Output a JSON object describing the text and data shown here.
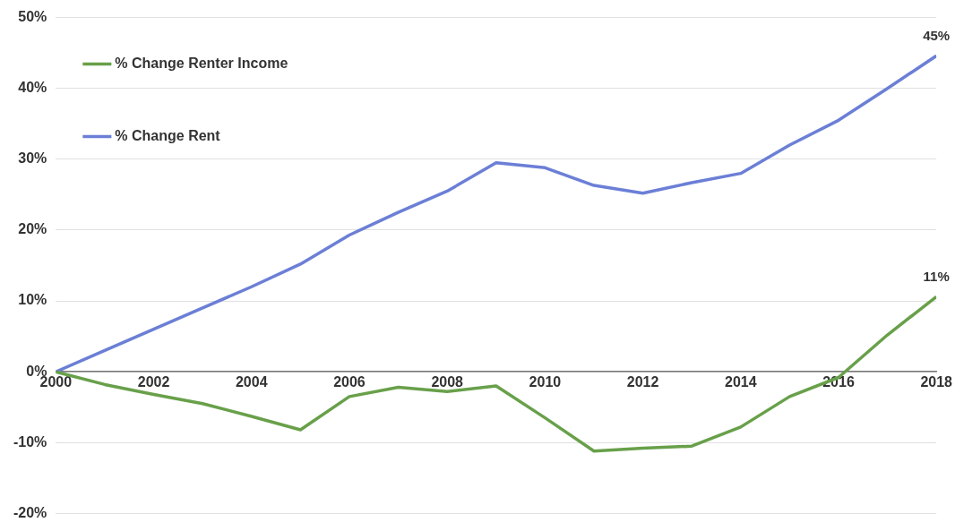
{
  "chart_data": {
    "type": "line",
    "x": [
      2000,
      2001,
      2002,
      2003,
      2004,
      2005,
      2006,
      2007,
      2008,
      2009,
      2010,
      2011,
      2012,
      2013,
      2014,
      2015,
      2016,
      2017,
      2018
    ],
    "series": [
      {
        "name": "% Change Renter Income",
        "color": "#68a04a",
        "values": [
          0,
          -1.8,
          -3.2,
          -4.5,
          -6.3,
          -8.2,
          -3.5,
          -2.2,
          -2.8,
          -2,
          -6.5,
          -11.2,
          -10.8,
          -10.5,
          -7.8,
          -3.5,
          -0.8,
          5.2,
          10.6
        ],
        "value_labels": [
          null,
          null,
          null,
          null,
          null,
          null,
          null,
          null,
          null,
          null,
          null,
          null,
          null,
          null,
          null,
          null,
          null,
          null,
          "11%"
        ]
      },
      {
        "name": "% Change Rent",
        "color": "#6b7fd6",
        "values": [
          0,
          3,
          6,
          9,
          12,
          15.2,
          19.3,
          22.5,
          25.5,
          29.5,
          28.8,
          26.3,
          25.2,
          26.7,
          28,
          32,
          35.5,
          40,
          44.6
        ],
        "value_labels": [
          null,
          null,
          null,
          null,
          null,
          null,
          null,
          null,
          null,
          null,
          null,
          null,
          null,
          null,
          null,
          null,
          null,
          null,
          "45%"
        ]
      }
    ],
    "xlim": [
      2000,
      2018
    ],
    "xticks": [
      2000,
      2002,
      2004,
      2006,
      2008,
      2010,
      2012,
      2014,
      2016,
      2018
    ],
    "ylim": [
      -20,
      50
    ],
    "yticks": [
      {
        "value": -20,
        "label": "-20%"
      },
      {
        "value": -10,
        "label": "-10%"
      },
      {
        "value": 0,
        "label": "0%"
      },
      {
        "value": 10,
        "label": "10%"
      },
      {
        "value": 20,
        "label": "20%"
      },
      {
        "value": 30,
        "label": "30%"
      },
      {
        "value": 40,
        "label": "40%"
      },
      {
        "value": 50,
        "label": "50%"
      }
    ],
    "grid": "y",
    "legend": "top left",
    "marker": "none",
    "line_style": "solid"
  }
}
